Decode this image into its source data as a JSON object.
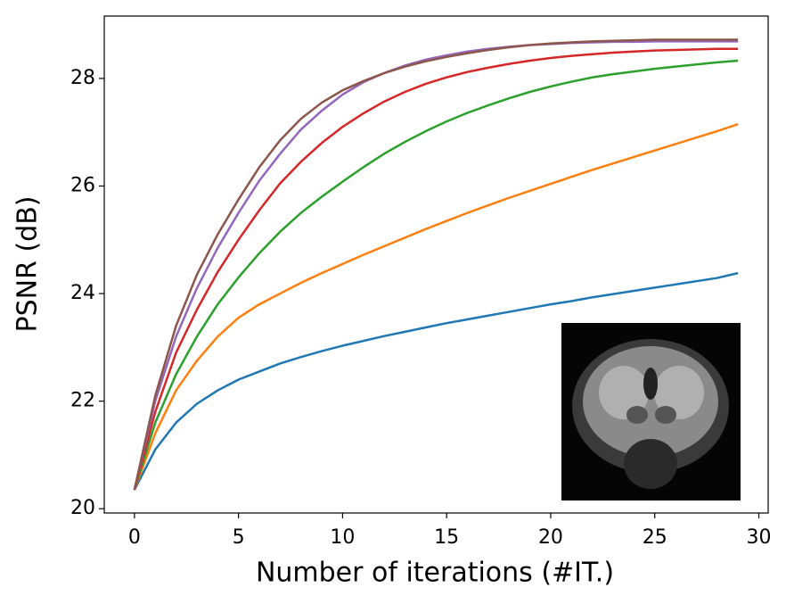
{
  "chart_data": {
    "type": "line",
    "x": [
      0,
      1,
      2,
      3,
      4,
      5,
      6,
      7,
      8,
      9,
      10,
      11,
      12,
      13,
      14,
      15,
      16,
      17,
      18,
      19,
      20,
      21,
      22,
      23,
      24,
      25,
      26,
      27,
      28,
      29
    ],
    "series": [
      {
        "color": "#1f77b4",
        "values": [
          20.35,
          21.1,
          21.6,
          21.95,
          22.2,
          22.4,
          22.55,
          22.7,
          22.82,
          22.93,
          23.03,
          23.12,
          23.21,
          23.29,
          23.37,
          23.45,
          23.52,
          23.59,
          23.66,
          23.73,
          23.8,
          23.86,
          23.93,
          23.99,
          24.05,
          24.11,
          24.17,
          24.23,
          24.29,
          24.38
        ]
      },
      {
        "color": "#ff7f0e",
        "values": [
          20.35,
          21.4,
          22.2,
          22.75,
          23.2,
          23.55,
          23.8,
          24.0,
          24.2,
          24.38,
          24.55,
          24.72,
          24.88,
          25.04,
          25.2,
          25.35,
          25.5,
          25.64,
          25.78,
          25.91,
          26.04,
          26.17,
          26.3,
          26.42,
          26.54,
          26.66,
          26.78,
          26.9,
          27.02,
          27.15
        ]
      },
      {
        "color": "#2ca02c",
        "values": [
          20.35,
          21.6,
          22.5,
          23.2,
          23.8,
          24.3,
          24.75,
          25.15,
          25.5,
          25.8,
          26.08,
          26.35,
          26.6,
          26.82,
          27.02,
          27.2,
          27.36,
          27.5,
          27.63,
          27.75,
          27.85,
          27.94,
          28.02,
          28.08,
          28.13,
          28.18,
          28.22,
          28.26,
          28.3,
          28.33
        ]
      },
      {
        "color": "#d62728",
        "values": [
          20.35,
          21.8,
          22.9,
          23.7,
          24.4,
          25.0,
          25.55,
          26.05,
          26.45,
          26.8,
          27.1,
          27.35,
          27.57,
          27.75,
          27.9,
          28.02,
          28.12,
          28.2,
          28.27,
          28.33,
          28.38,
          28.42,
          28.45,
          28.48,
          28.5,
          28.52,
          28.53,
          28.54,
          28.55,
          28.55
        ]
      },
      {
        "color": "#9467bd",
        "values": [
          20.35,
          22.0,
          23.2,
          24.1,
          24.85,
          25.5,
          26.1,
          26.6,
          27.05,
          27.4,
          27.7,
          27.93,
          28.1,
          28.24,
          28.35,
          28.43,
          28.5,
          28.55,
          28.59,
          28.62,
          28.64,
          28.66,
          28.67,
          28.68,
          28.68,
          28.69,
          28.69,
          28.69,
          28.69,
          28.69
        ]
      },
      {
        "color": "#8c564b",
        "values": [
          20.35,
          22.1,
          23.4,
          24.35,
          25.1,
          25.75,
          26.35,
          26.85,
          27.25,
          27.55,
          27.78,
          27.95,
          28.1,
          28.22,
          28.32,
          28.4,
          28.47,
          28.53,
          28.58,
          28.62,
          28.65,
          28.67,
          28.69,
          28.7,
          28.71,
          28.72,
          28.72,
          28.72,
          28.72,
          28.72
        ]
      }
    ],
    "xlabel": "Number of iterations (#IT.)",
    "ylabel": "PSNR (dB)",
    "xlim": [
      -1.45,
      30.45
    ],
    "xticks": [
      0,
      5,
      10,
      15,
      20,
      25,
      30
    ],
    "ylim": [
      19.92,
      29.16
    ],
    "yticks": [
      20,
      22,
      24,
      26,
      28
    ],
    "grid": false
  }
}
